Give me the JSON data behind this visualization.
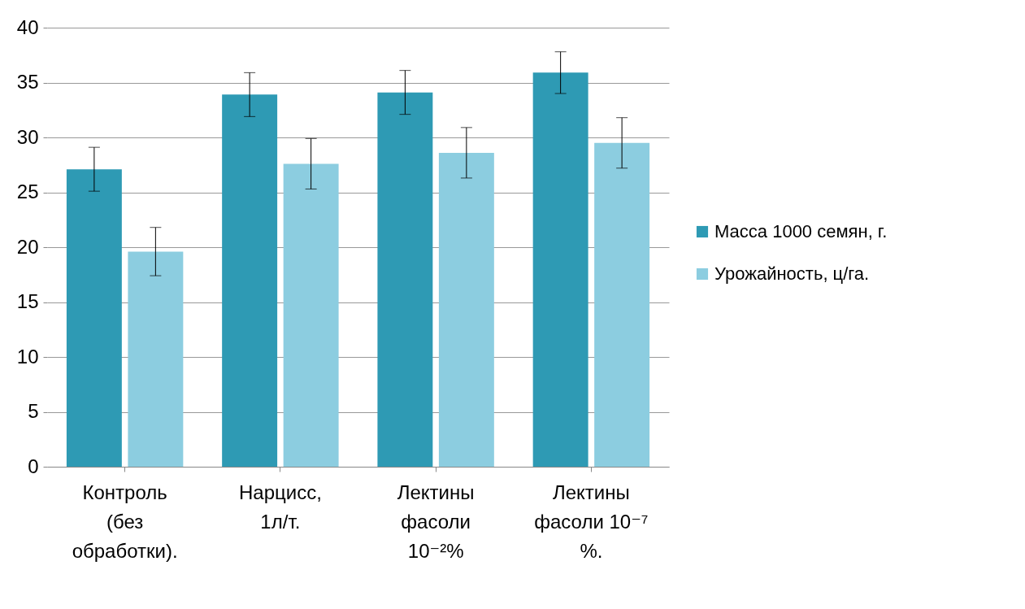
{
  "chart_data": {
    "type": "bar",
    "categories": [
      "Контроль (без обработки).",
      "Нарцисс, 1л/т.",
      "Лектины фасоли 10⁻²%",
      "Лектины фасоли 10⁻⁷ %."
    ],
    "series": [
      {
        "name": "Масса 1000 семян, г.",
        "color": "#2e9ab4",
        "values": [
          27.1,
          33.9,
          34.1,
          35.9
        ],
        "errors": [
          2,
          2,
          2,
          1.9
        ]
      },
      {
        "name": "Урожайность, ц/га.",
        "color": "#8ccde0",
        "values": [
          19.6,
          27.6,
          28.6,
          29.5
        ],
        "errors": [
          2.2,
          2.3,
          2.3,
          2.3
        ]
      }
    ],
    "ylim": [
      0,
      40
    ],
    "yticks": [
      0,
      5,
      10,
      15,
      20,
      25,
      30,
      35,
      40
    ],
    "grid": "y",
    "legend": "right"
  }
}
